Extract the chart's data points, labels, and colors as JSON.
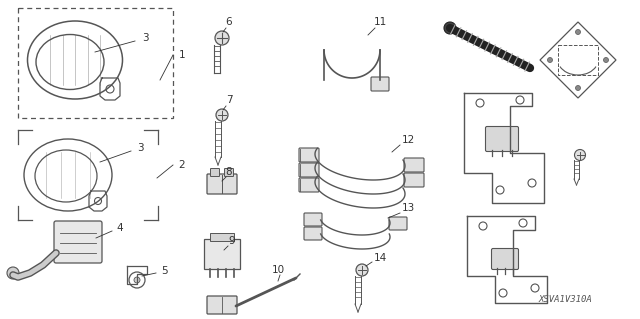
{
  "background_color": "#ffffff",
  "diagram_color": "#555555",
  "fig_width": 6.4,
  "fig_height": 3.19,
  "watermark": "XSVA1V310A"
}
